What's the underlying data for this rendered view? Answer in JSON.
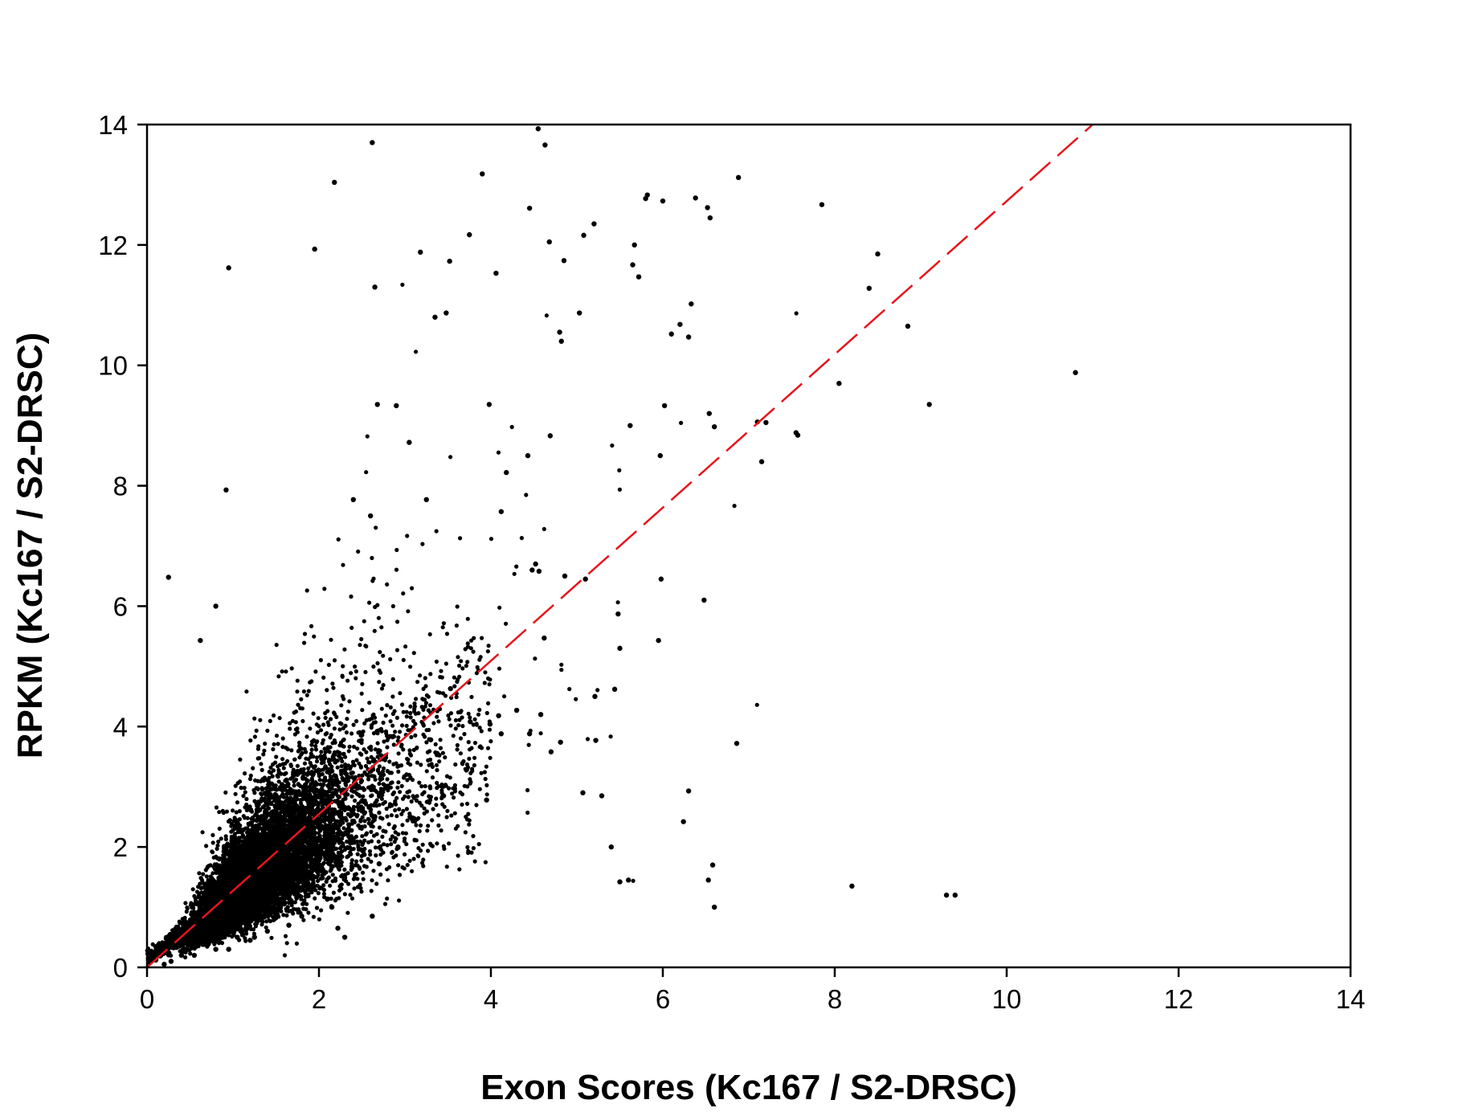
{
  "chart_data": {
    "type": "scatter",
    "xlabel": "Exon Scores (Kc167 / S2-DRSC)",
    "ylabel": "RPKM (Kc167 / S2-DRSC)",
    "xlim": [
      0,
      14
    ],
    "ylim": [
      0,
      14
    ],
    "xticks": [
      "0",
      "2",
      "4",
      "6",
      "8",
      "10",
      "12",
      "14"
    ],
    "yticks": [
      "0",
      "2",
      "4",
      "6",
      "8",
      "10",
      "12",
      "14"
    ],
    "grid": false,
    "legend": "none",
    "colors": {
      "points": "#000000",
      "trendline": "#e8141b",
      "axes": "#000000"
    },
    "trendline": {
      "style": "dashed",
      "x": [
        0,
        11.0
      ],
      "y": [
        0,
        14.0
      ]
    },
    "point_cloud": {
      "description_counts": "dense cluster near origin",
      "center": [
        1.3,
        1.6
      ],
      "approx_count": 9000
    },
    "outliers": {
      "x": [
        0.25,
        0.95,
        0.92,
        0.8,
        0.62,
        1.95,
        2.18,
        2.62,
        2.65,
        2.4,
        2.6,
        2.68,
        2.9,
        3.18,
        3.35,
        3.48,
        3.52,
        3.25,
        3.05,
        3.75,
        3.9,
        4.06,
        4.45,
        4.55,
        4.63,
        4.68,
        4.85,
        4.8,
        4.82,
        5.08,
        5.2,
        5.03,
        5.67,
        5.65,
        5.72,
        5.8,
        5.82,
        6.0,
        6.1,
        6.02,
        6.2,
        6.33,
        6.3,
        6.38,
        6.52,
        6.55,
        6.88,
        7.2,
        7.85,
        8.05,
        8.4,
        8.5,
        8.85,
        9.1,
        10.8,
        3.98,
        4.18,
        4.12,
        4.43,
        4.52,
        4.69,
        4.86,
        5.1,
        5.62,
        5.97,
        6.54,
        6.6,
        7.15,
        7.1,
        7.55,
        7.57,
        5.98,
        6.48,
        6.86,
        5.95,
        5.21,
        5.44,
        5.5,
        5.48,
        4.56,
        4.48,
        4.62,
        5.07,
        5.29,
        5.22,
        5.4,
        5.6,
        6.3,
        6.24,
        8.2,
        9.3,
        9.4,
        6.6,
        6.53,
        6.58,
        5.5,
        3.76,
        3.99,
        4.09,
        4.12,
        4.3,
        4.45,
        4.58,
        4.81,
        4.7,
        3.95,
        3.45,
        3.53,
        3.3,
        3.06,
        2.92,
        2.7,
        2.62,
        2.3,
        2.22,
        2.15,
        1.8,
        1.65,
        1.4,
        1.25,
        1.2,
        1.05,
        0.95,
        0.8,
        0.55,
        0.4,
        0.28,
        0.2
      ],
      "y": [
        6.48,
        11.62,
        7.93,
        6.0,
        5.43,
        11.93,
        13.04,
        13.7,
        11.3,
        7.77,
        7.5,
        9.35,
        9.33,
        11.88,
        10.8,
        10.87,
        11.73,
        7.77,
        8.72,
        12.17,
        13.18,
        11.53,
        12.61,
        13.93,
        13.66,
        12.05,
        11.74,
        10.55,
        10.4,
        12.16,
        12.35,
        10.87,
        12.0,
        11.67,
        11.47,
        12.77,
        12.83,
        12.73,
        10.52,
        9.33,
        10.68,
        11.02,
        10.47,
        12.78,
        12.62,
        12.45,
        13.12,
        9.05,
        12.67,
        9.7,
        11.28,
        11.85,
        10.65,
        9.35,
        9.88,
        9.35,
        8.22,
        7.57,
        8.5,
        6.7,
        8.83,
        6.5,
        6.45,
        9.0,
        8.5,
        9.2,
        8.98,
        8.4,
        9.06,
        8.88,
        8.84,
        6.45,
        6.1,
        3.72,
        5.43,
        4.5,
        4.62,
        5.3,
        5.87,
        6.58,
        6.6,
        5.47,
        2.9,
        2.85,
        3.77,
        2.0,
        1.45,
        2.93,
        2.42,
        1.35,
        1.2,
        1.2,
        1.0,
        1.45,
        1.7,
        1.42,
        4.08,
        4.04,
        4.18,
        3.88,
        4.27,
        3.88,
        4.2,
        3.74,
        3.58,
        2.78,
        2.85,
        4.63,
        3.78,
        2.5,
        2.0,
        1.72,
        0.85,
        0.5,
        0.65,
        1.0,
        0.85,
        0.7,
        0.6,
        0.5,
        0.45,
        0.5,
        0.3,
        0.3,
        0.2,
        0.2,
        0.1,
        0.05
      ]
    }
  }
}
